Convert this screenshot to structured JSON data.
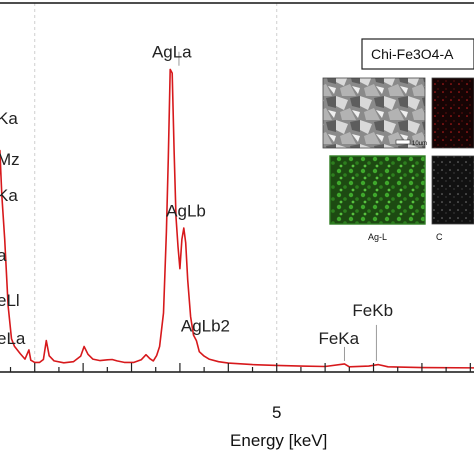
{
  "chart_data": {
    "type": "line",
    "title": "",
    "xlabel": "Energy [keV]",
    "ylabel": "",
    "xlim": [
      -0.8,
      9.2
    ],
    "ylim": [
      0,
      100
    ],
    "grid": true,
    "line_color": "#d7191c",
    "x_ticks": [
      {
        "value": 5,
        "label": "5"
      }
    ],
    "spectrum": [
      [
        -0.8,
        20
      ],
      [
        -0.72,
        60
      ],
      [
        -0.68,
        48
      ],
      [
        -0.62,
        36
      ],
      [
        -0.55,
        18
      ],
      [
        -0.48,
        9
      ],
      [
        -0.42,
        7
      ],
      [
        -0.3,
        5
      ],
      [
        -0.2,
        3.5
      ],
      [
        -0.12,
        6
      ],
      [
        -0.08,
        3.2
      ],
      [
        0.0,
        2.6
      ],
      [
        0.1,
        2.6
      ],
      [
        0.18,
        3.4
      ],
      [
        0.24,
        8.5
      ],
      [
        0.3,
        4.4
      ],
      [
        0.4,
        3.0
      ],
      [
        0.6,
        2.5
      ],
      [
        0.8,
        2.8
      ],
      [
        0.95,
        4.3
      ],
      [
        1.02,
        6.9
      ],
      [
        1.1,
        4.8
      ],
      [
        1.2,
        3.5
      ],
      [
        1.35,
        3.1
      ],
      [
        1.5,
        3.3
      ],
      [
        1.6,
        3.4
      ],
      [
        1.7,
        3.0
      ],
      [
        1.85,
        2.6
      ],
      [
        2.05,
        2.6
      ],
      [
        2.2,
        3.3
      ],
      [
        2.3,
        4.7
      ],
      [
        2.38,
        3.6
      ],
      [
        2.45,
        3.0
      ],
      [
        2.52,
        4.5
      ],
      [
        2.58,
        6.9
      ],
      [
        2.66,
        16
      ],
      [
        2.72,
        38
      ],
      [
        2.76,
        58
      ],
      [
        2.8,
        82
      ],
      [
        2.84,
        81
      ],
      [
        2.88,
        60
      ],
      [
        2.92,
        42
      ],
      [
        2.96,
        34
      ],
      [
        3.0,
        28
      ],
      [
        3.04,
        36
      ],
      [
        3.08,
        39
      ],
      [
        3.12,
        35
      ],
      [
        3.16,
        25
      ],
      [
        3.22,
        15
      ],
      [
        3.28,
        10
      ],
      [
        3.34,
        8.5
      ],
      [
        3.4,
        5.5
      ],
      [
        3.5,
        4.3
      ],
      [
        3.6,
        3.5
      ],
      [
        3.8,
        2.8
      ],
      [
        4.0,
        2.4
      ],
      [
        4.5,
        2.0
      ],
      [
        5.0,
        1.8
      ],
      [
        5.5,
        1.6
      ],
      [
        6.0,
        1.5
      ],
      [
        6.4,
        2.2
      ],
      [
        6.5,
        1.4
      ],
      [
        6.9,
        1.6
      ],
      [
        7.1,
        2.0
      ],
      [
        7.3,
        1.4
      ],
      [
        8.0,
        1.2
      ],
      [
        9.2,
        1.1
      ]
    ],
    "annotations": [
      {
        "label": "AgLa",
        "x": 2.98,
        "y": 83,
        "marker": true
      },
      {
        "label": "AgLb",
        "x": 3.15,
        "y": 40,
        "marker": false
      },
      {
        "label": "AgLb2",
        "x": 3.35,
        "y": 12,
        "marker": false
      },
      {
        "label": "FeKa",
        "x": 6.4,
        "y": 3,
        "marker": true
      },
      {
        "label": "FeKb",
        "x": 7.06,
        "y": 3,
        "marker": true
      },
      {
        "label": "Ka",
        "x": -0.8,
        "y": 72,
        "marker": false
      },
      {
        "label": "Mz",
        "x": -0.8,
        "y": 58,
        "marker": false
      },
      {
        "label": "Ka",
        "x": -0.8,
        "y": 49,
        "marker": false
      },
      {
        "label": "a",
        "x": -0.8,
        "y": 32,
        "marker": false
      },
      {
        "label": "eLl",
        "x": -0.8,
        "y": 16,
        "marker": false
      },
      {
        "label": "eLa",
        "x": -0.8,
        "y": 7,
        "marker": false
      }
    ]
  },
  "inset": {
    "title": "Chi-Fe3O4-A",
    "maps": [
      {
        "caption": "",
        "tone": "sem",
        "scale_bar": "10um"
      },
      {
        "caption": "C",
        "tone": "red"
      },
      {
        "caption": "Ag-L",
        "tone": "green"
      },
      {
        "caption": "C",
        "tone": "dark"
      }
    ]
  }
}
